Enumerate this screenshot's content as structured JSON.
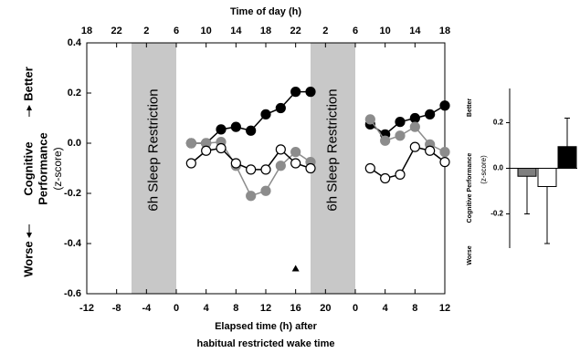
{
  "chart_data": [
    {
      "type": "line",
      "title": "Time of day (h)",
      "xlabel": [
        "Elapsed time (h) after",
        "habitual restricted wake time"
      ],
      "ylabel": [
        "Cognitive",
        "Performance"
      ],
      "ylabel_sub": "(z-score)",
      "better_label": "Better",
      "worse_label": "Worse",
      "xlim": [
        -12,
        36
      ],
      "xticks": [
        -12,
        -8,
        -4,
        0,
        4,
        8,
        12,
        16,
        20,
        {
          "value": 24,
          "label": "0"
        },
        {
          "value": 28,
          "label": "4"
        },
        {
          "value": 32,
          "label": "8"
        },
        {
          "value": 36,
          "label": "12"
        }
      ],
      "x2ticks": [
        {
          "value": -12,
          "label": "18"
        },
        {
          "value": -8,
          "label": "22"
        },
        {
          "value": -4,
          "label": "2"
        },
        {
          "value": 0,
          "label": "6"
        },
        {
          "value": 4,
          "label": "10"
        },
        {
          "value": 8,
          "label": "14"
        },
        {
          "value": 12,
          "label": "18"
        },
        {
          "value": 16,
          "label": "22"
        },
        {
          "value": 20,
          "label": "2"
        },
        {
          "value": 24,
          "label": "6"
        },
        {
          "value": 28,
          "label": "10"
        },
        {
          "value": 32,
          "label": "14"
        },
        {
          "value": 36,
          "label": "18"
        }
      ],
      "ylim": [
        -0.6,
        0.4
      ],
      "yticks": [
        0.4,
        0.2,
        {
          "value": 0,
          "label": "0.0"
        },
        -0.2,
        -0.4,
        -0.6
      ],
      "shaded_regions": [
        {
          "start": -6,
          "end": 0,
          "label": "6h Sleep Restriction",
          "color": "#c8c8c8"
        },
        {
          "start": 18,
          "end": 24,
          "label": "6h Sleep Restriction",
          "color": "#c8c8c8"
        }
      ],
      "x": [
        2,
        4,
        6,
        8,
        10,
        12,
        14,
        16,
        18,
        26,
        28,
        30,
        32,
        34,
        36
      ],
      "series": [
        {
          "color": "#000000",
          "fill": "#000000",
          "values": [
            0.0,
            0.0,
            0.055,
            0.065,
            0.05,
            0.115,
            0.14,
            0.205,
            0.205,
            0.075,
            0.035,
            0.085,
            0.1,
            0.115,
            0.15
          ]
        },
        {
          "color": "#8c8c8c",
          "fill": "#8c8c8c",
          "values": [
            0.0,
            0.0,
            0.005,
            -0.09,
            -0.21,
            -0.19,
            -0.09,
            -0.035,
            -0.075,
            0.095,
            0.01,
            0.03,
            0.065,
            -0.005,
            -0.035
          ]
        },
        {
          "color": "#000000",
          "fill": "#ffffff",
          "values": [
            -0.08,
            -0.03,
            -0.02,
            -0.08,
            -0.105,
            -0.105,
            -0.025,
            -0.08,
            -0.1,
            -0.1,
            -0.14,
            -0.125,
            -0.015,
            -0.03,
            -0.075
          ]
        }
      ],
      "marker": {
        "x": 16,
        "y": -0.5
      }
    },
    {
      "type": "bar",
      "ylabel": "Cognitive Performance",
      "ylabel_sub": "(z-score)",
      "better_label": "Better",
      "worse_label": "Worse",
      "categories": [
        null,
        null,
        null
      ],
      "values": [
        -0.035,
        -0.08,
        0.095
      ],
      "errors": [
        0.165,
        0.25,
        0.125
      ],
      "colors": [
        "#7f7f7f",
        "#ffffff",
        "#000000"
      ],
      "ylim": [
        -0.35,
        0.35
      ],
      "yticks": [
        0.2,
        {
          "value": 0,
          "label": "0.0"
        },
        -0.2
      ]
    }
  ]
}
